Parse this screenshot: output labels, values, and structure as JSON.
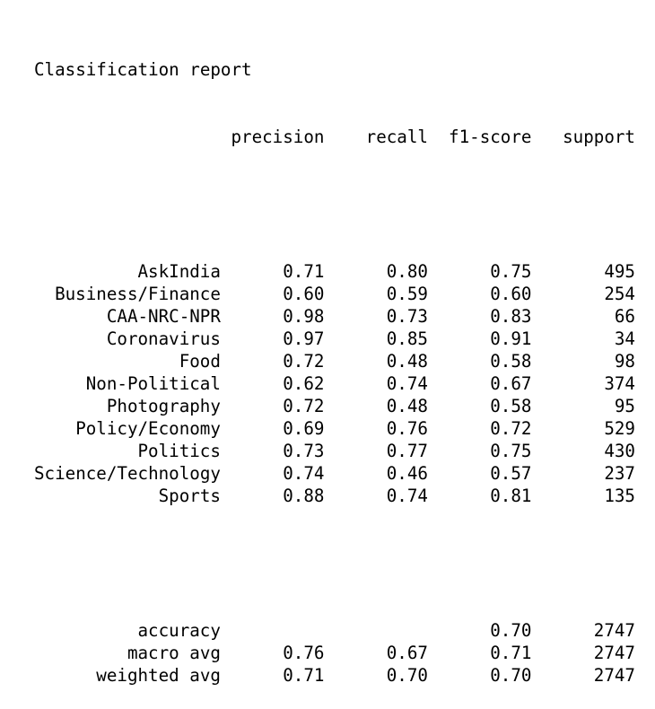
{
  "title": "Classification report",
  "headers": [
    "precision",
    "recall",
    "f1-score",
    "support"
  ],
  "rows": [
    {
      "label": "AskIndia",
      "precision": "0.71",
      "recall": "0.80",
      "f1": "0.75",
      "support": "495"
    },
    {
      "label": "Business/Finance",
      "precision": "0.60",
      "recall": "0.59",
      "f1": "0.60",
      "support": "254"
    },
    {
      "label": "CAA-NRC-NPR",
      "precision": "0.98",
      "recall": "0.73",
      "f1": "0.83",
      "support": "66"
    },
    {
      "label": "Coronavirus",
      "precision": "0.97",
      "recall": "0.85",
      "f1": "0.91",
      "support": "34"
    },
    {
      "label": "Food",
      "precision": "0.72",
      "recall": "0.48",
      "f1": "0.58",
      "support": "98"
    },
    {
      "label": "Non-Political",
      "precision": "0.62",
      "recall": "0.74",
      "f1": "0.67",
      "support": "374"
    },
    {
      "label": "Photography",
      "precision": "0.72",
      "recall": "0.48",
      "f1": "0.58",
      "support": "95"
    },
    {
      "label": "Policy/Economy",
      "precision": "0.69",
      "recall": "0.76",
      "f1": "0.72",
      "support": "529"
    },
    {
      "label": "Politics",
      "precision": "0.73",
      "recall": "0.77",
      "f1": "0.75",
      "support": "430"
    },
    {
      "label": "Science/Technology",
      "precision": "0.74",
      "recall": "0.46",
      "f1": "0.57",
      "support": "237"
    },
    {
      "label": "Sports",
      "precision": "0.88",
      "recall": "0.74",
      "f1": "0.81",
      "support": "135"
    }
  ],
  "summary": [
    {
      "label": "accuracy",
      "precision": "",
      "recall": "",
      "f1": "0.70",
      "support": "2747"
    },
    {
      "label": "macro avg",
      "precision": "0.76",
      "recall": "0.67",
      "f1": "0.71",
      "support": "2747"
    },
    {
      "label": "weighted avg",
      "precision": "0.71",
      "recall": "0.70",
      "f1": "0.70",
      "support": "2747"
    }
  ]
}
